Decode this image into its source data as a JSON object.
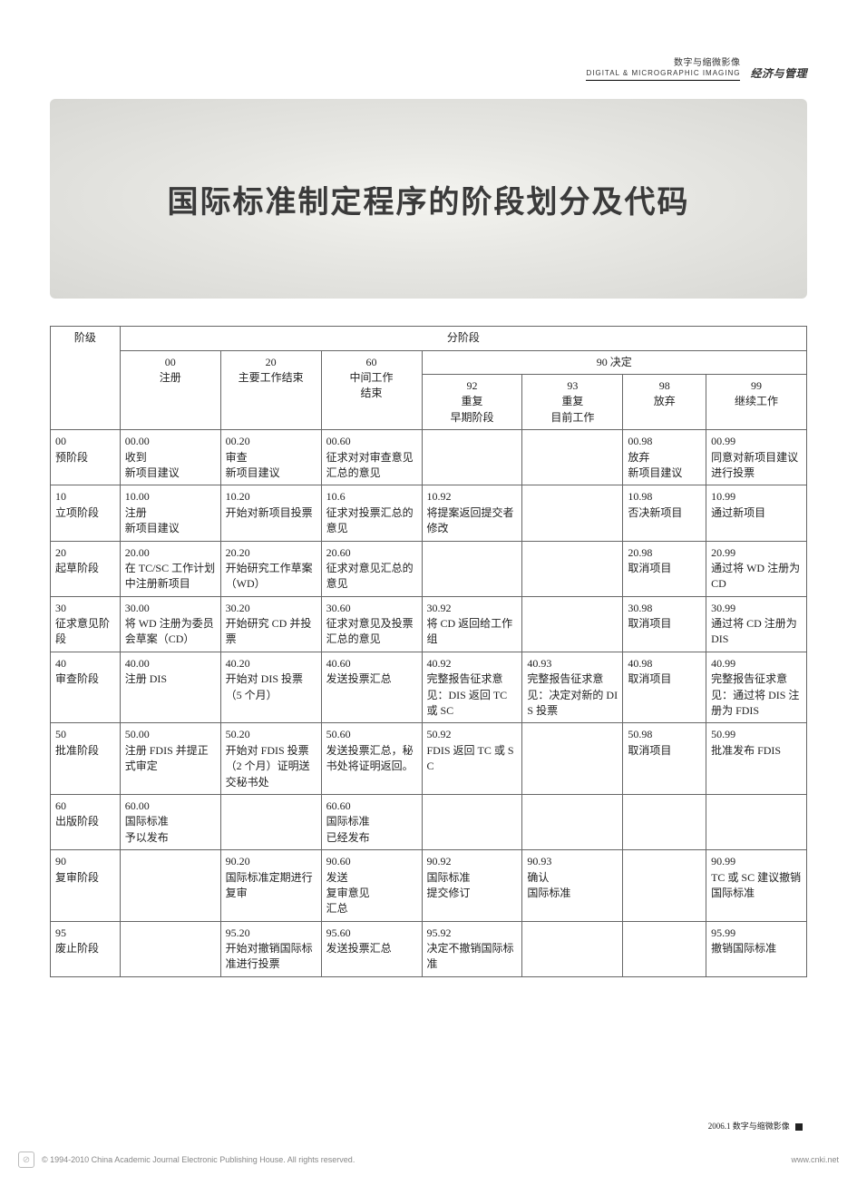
{
  "header": {
    "cn": "数字与缩微影像",
    "en": "DIGITAL & MICROGRAPHIC IMAGING",
    "tag": "经济与管理"
  },
  "banner": {
    "title": "国际标准制定程序的阶段划分及代码"
  },
  "table": {
    "group_header": "分阶段",
    "decision_header": "90  决定",
    "row_header": "阶级",
    "cols": [
      {
        "code": "00",
        "label": "注册"
      },
      {
        "code": "20",
        "label": "主要工作结束"
      },
      {
        "code": "60",
        "label": "中间工作\n结束"
      },
      {
        "code": "92",
        "label": "重复\n早期阶段"
      },
      {
        "code": "93",
        "label": "重复\n目前工作"
      },
      {
        "code": "98",
        "label": "放弃"
      },
      {
        "code": "99",
        "label": "继续工作"
      }
    ],
    "rows": [
      {
        "code": "00",
        "label": "预阶段",
        "cells": [
          "00.00\n收到\n新项目建议",
          "00.20\n审查\n新项目建议",
          "00.60\n征求对对审查意见汇总的意见",
          "",
          "",
          "00.98\n放弃\n新项目建议",
          "00.99\n同意对新项目建议进行投票"
        ]
      },
      {
        "code": "10",
        "label": "立项阶段",
        "cells": [
          "10.00\n注册\n新项目建议",
          "10.20\n开始对新项目投票",
          "10.6\n征求对投票汇总的意见",
          "10.92\n将提案返回提交者修改",
          "",
          "10.98\n否决新项目",
          "10.99\n通过新项目"
        ]
      },
      {
        "code": "20",
        "label": "起草阶段",
        "cells": [
          "20.00\n在 TC/SC 工作计划中注册新项目",
          "20.20\n开始研究工作草案（WD）",
          "20.60\n征求对意见汇总的意见",
          "",
          "",
          "20.98\n取消项目",
          "20.99\n通过将 WD 注册为 CD"
        ]
      },
      {
        "code": "30",
        "label": "征求意见阶段",
        "cells": [
          "30.00\n将 WD 注册为委员会草案（CD）",
          "30.20\n开始研究 CD 并投票",
          "30.60\n征求对意见及投票汇总的意见",
          "30.92\n将 CD 返回给工作组",
          "",
          "30.98\n取消项目",
          "30.99\n通过将 CD 注册为 DIS"
        ]
      },
      {
        "code": "40",
        "label": "审查阶段",
        "cells": [
          "40.00\n注册 DIS",
          "40.20\n开始对 DIS 投票（5 个月）",
          "40.60\n发送投票汇总",
          "40.92\n完整报告征求意见：DIS 返回 TC 或 SC",
          "40.93\n完整报告征求意见：决定对新的 DIS 投票",
          "40.98\n取消项目",
          "40.99\n完整报告征求意见：通过将 DIS 注册为 FDIS"
        ]
      },
      {
        "code": "50",
        "label": "批准阶段",
        "cells": [
          "50.00\n注册 FDIS 并提正式审定",
          "50.20\n开始对 FDIS 投票（2 个月）证明送交秘书处",
          "50.60\n发送投票汇总，秘书处将证明返回。",
          "50.92\nFDIS 返回 TC 或 SC",
          "",
          "50.98\n取消项目",
          "50.99\n批准发布 FDIS"
        ]
      },
      {
        "code": "60",
        "label": "出版阶段",
        "cells": [
          "60.00\n国际标准\n予以发布",
          "",
          "60.60\n国际标准\n已经发布",
          "",
          "",
          "",
          ""
        ]
      },
      {
        "code": "90",
        "label": "复审阶段",
        "cells": [
          "",
          "90.20\n国际标准定期进行复审",
          "90.60\n发送\n复审意见\n汇总",
          "90.92\n国际标准\n提交修订",
          "90.93\n确认\n国际标准",
          "",
          "90.99\nTC 或 SC 建议撤销国际标准"
        ]
      },
      {
        "code": "95",
        "label": "废止阶段",
        "cells": [
          "",
          "95.20\n开始对撤销国际标准进行投票",
          "95.60\n发送投票汇总",
          "95.92\n决定不撤销国际标准",
          "",
          "",
          "95.99\n撤销国际标准"
        ]
      }
    ]
  },
  "footer": {
    "issue": "2006.1  数字与缩微影像"
  },
  "copyright": {
    "text": "© 1994-2010 China Academic Journal Electronic Publishing House. All rights reserved.",
    "url": "www.cnki.net"
  }
}
